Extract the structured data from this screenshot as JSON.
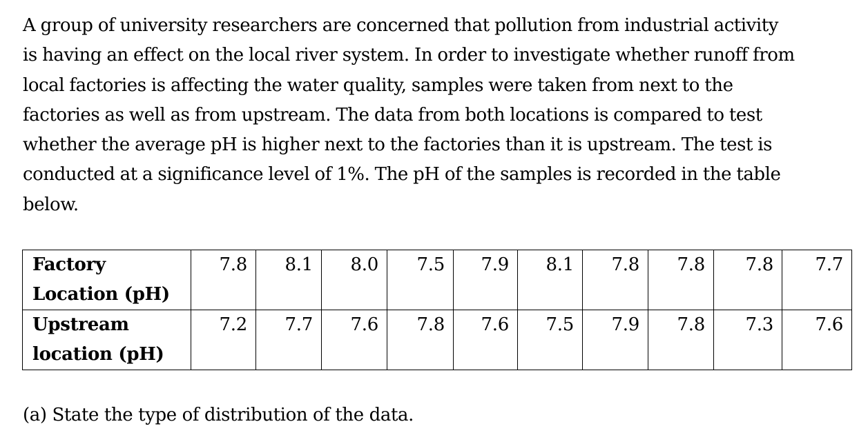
{
  "intro_lines": [
    "A group of university researchers are concerned that pollution from industrial activity",
    "is having an effect on the local river system.  In order to investigate whether runoff from",
    "local factories is affecting the water quality, samples were taken from next to the",
    "factories as well as from upstream.  The data from both locations is compared to test",
    "whether the average pH is higher next to the factories than it is upstream. The test is",
    "conducted at a significance level of 1%.  The pH of the samples is recorded in the table",
    "below."
  ],
  "table": {
    "rows": [
      {
        "header_line1": "Factory",
        "header_line2": "Location (pH)",
        "values": [
          "7.8",
          "8.1",
          "8.0",
          "7.5",
          "7.9",
          "8.1",
          "7.8",
          "7.8",
          "7.8",
          "7.7"
        ]
      },
      {
        "header_line1": "Upstream",
        "header_line2": "location (pH)",
        "values": [
          "7.2",
          "7.7",
          "7.6",
          "7.8",
          "7.6",
          "7.5",
          "7.9",
          "7.8",
          "7.3",
          "7.6"
        ]
      }
    ]
  },
  "question_a": "(a) State the type of distribution of the data."
}
